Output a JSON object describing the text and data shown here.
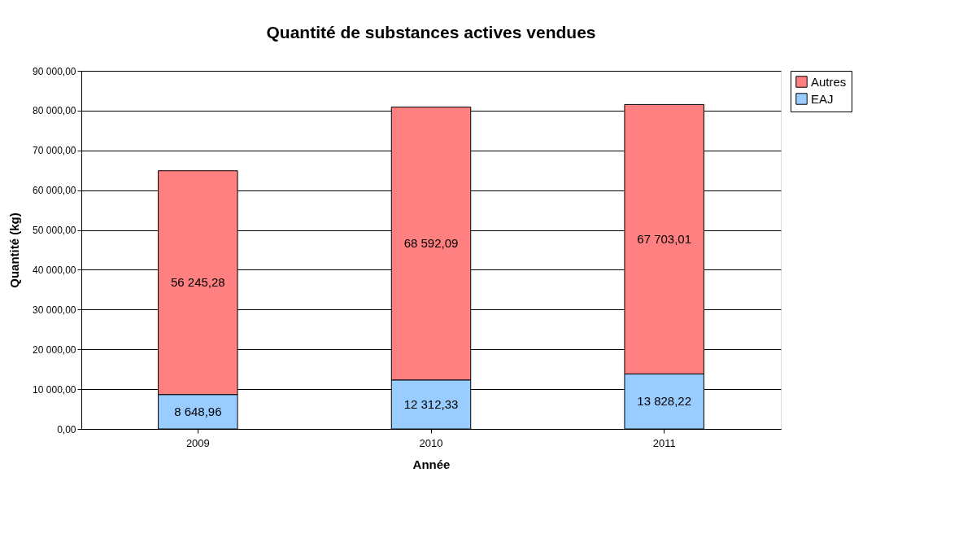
{
  "chart_data": {
    "type": "bar",
    "title": "Quantité de substances actives vendues",
    "xlabel": "Année",
    "ylabel": "Quantité (kg)",
    "categories": [
      "2009",
      "2010",
      "2011"
    ],
    "stacked": true,
    "series": [
      {
        "name": "EAJ",
        "color": "#99ccff",
        "values": [
          8648.96,
          12312.33,
          13828.22
        ],
        "value_labels": [
          "8 648,96",
          "12 312,33",
          "13 828,22"
        ]
      },
      {
        "name": "Autres",
        "color": "#ff8080",
        "values": [
          56245.28,
          68592.09,
          67703.01
        ],
        "value_labels": [
          "56 245,28",
          "68 592,09",
          "67 703,01"
        ]
      }
    ],
    "ylim": [
      0,
      90000
    ],
    "yticks": [
      {
        "value": 0,
        "label": "0,00"
      },
      {
        "value": 10000,
        "label": "10 000,00"
      },
      {
        "value": 20000,
        "label": "20 000,00"
      },
      {
        "value": 30000,
        "label": "30 000,00"
      },
      {
        "value": 40000,
        "label": "40 000,00"
      },
      {
        "value": 50000,
        "label": "50 000,00"
      },
      {
        "value": 60000,
        "label": "60 000,00"
      },
      {
        "value": 70000,
        "label": "70 000,00"
      },
      {
        "value": 80000,
        "label": "80 000,00"
      },
      {
        "value": 90000,
        "label": "90 000,00"
      }
    ],
    "grid": "y",
    "legend": "right"
  }
}
